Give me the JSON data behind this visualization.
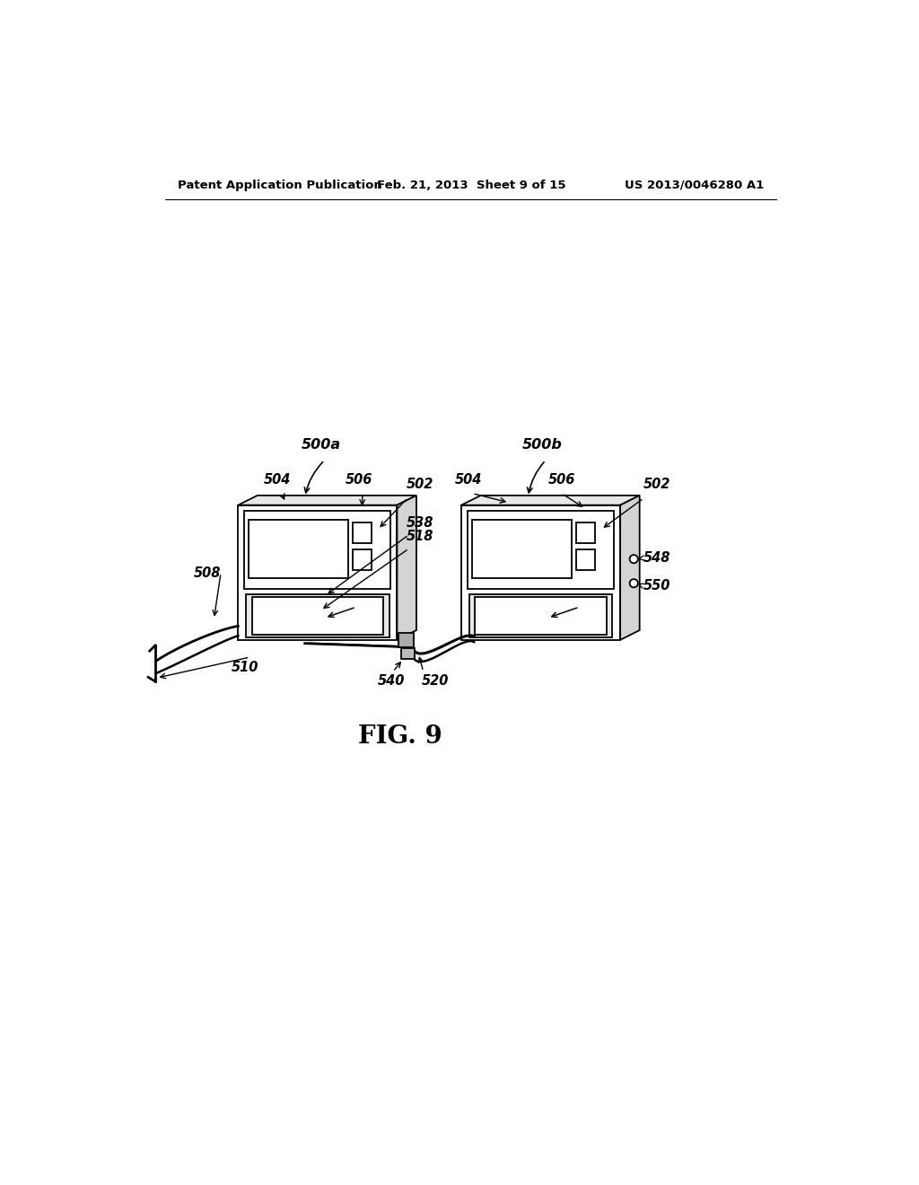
{
  "bg_color": "#ffffff",
  "header_left": "Patent Application Publication",
  "header_mid": "Feb. 21, 2013  Sheet 9 of 15",
  "header_right": "US 2013/0046280 A1",
  "fig_label": "FIG. 9",
  "line_color": "#000000",
  "lw": 1.3
}
